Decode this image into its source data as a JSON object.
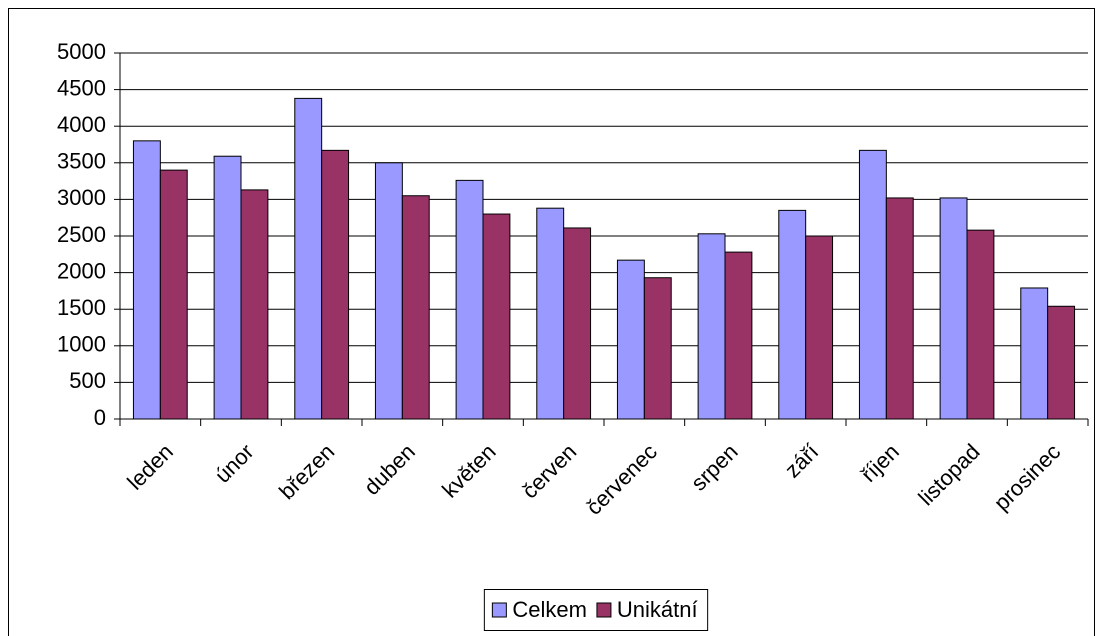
{
  "chart_data": {
    "type": "bar",
    "categories": [
      "leden",
      "únor",
      "březen",
      "duben",
      "květen",
      "červen",
      "červenec",
      "srpen",
      "září",
      "říjen",
      "listopad",
      "prosinec"
    ],
    "series": [
      {
        "name": "Celkem",
        "color": "#9999ff",
        "values": [
          3800,
          3590,
          4380,
          3500,
          3260,
          2880,
          2170,
          2530,
          2850,
          3670,
          3020,
          1790
        ]
      },
      {
        "name": "Unikátní",
        "color": "#993366",
        "values": [
          3400,
          3130,
          3670,
          3050,
          2800,
          2610,
          1930,
          2280,
          2500,
          3020,
          2580,
          1540
        ]
      }
    ],
    "ylim": [
      0,
      5000
    ],
    "yticks": [
      0,
      500,
      1000,
      1500,
      2000,
      2500,
      3000,
      3500,
      4000,
      4500,
      5000
    ],
    "grid": true,
    "legend": "bottom"
  }
}
